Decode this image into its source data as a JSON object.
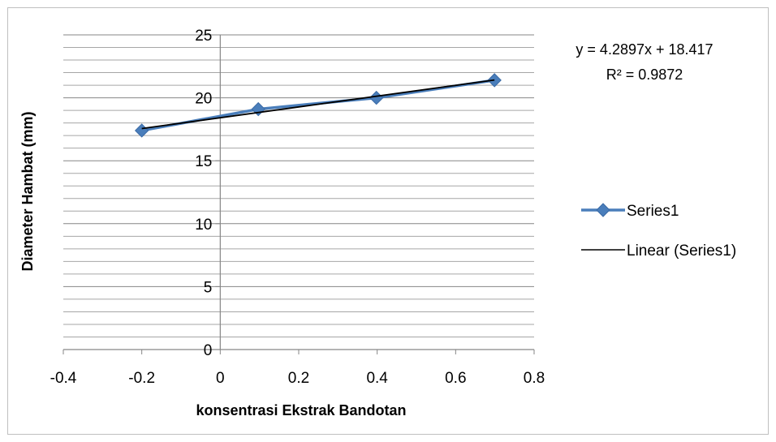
{
  "chart_data": {
    "type": "scatter",
    "title": "",
    "xlabel": "konsentrasi Ekstrak Bandotan",
    "ylabel": "Diameter Hambat (mm)",
    "xlim": [
      -0.4,
      0.8
    ],
    "ylim": [
      0,
      25
    ],
    "x_ticks": [
      "-0.4",
      "-0.2",
      "0",
      "0.2",
      "0.4",
      "0.6",
      "0.8"
    ],
    "y_ticks": [
      "0",
      "5",
      "10",
      "15",
      "20",
      "25"
    ],
    "grid": "horizontal",
    "series": [
      {
        "name": "Series1",
        "marker": "diamond",
        "color": "#4a7ebb",
        "x": [
          -0.2,
          0.097,
          0.398,
          0.699
        ],
        "y": [
          17.4,
          19.1,
          20.0,
          21.4
        ]
      }
    ],
    "trendline": {
      "name": "Linear (Series1)",
      "type": "linear",
      "slope": 4.2897,
      "intercept": 18.417,
      "color": "#000000",
      "x_range": [
        -0.2,
        0.699
      ]
    },
    "equation": "y = 4.2897x + 18.417",
    "r_squared": "R² = 0.9872",
    "legend": {
      "placement": "right",
      "entries": [
        "Series1",
        "Linear (Series1)"
      ]
    }
  }
}
